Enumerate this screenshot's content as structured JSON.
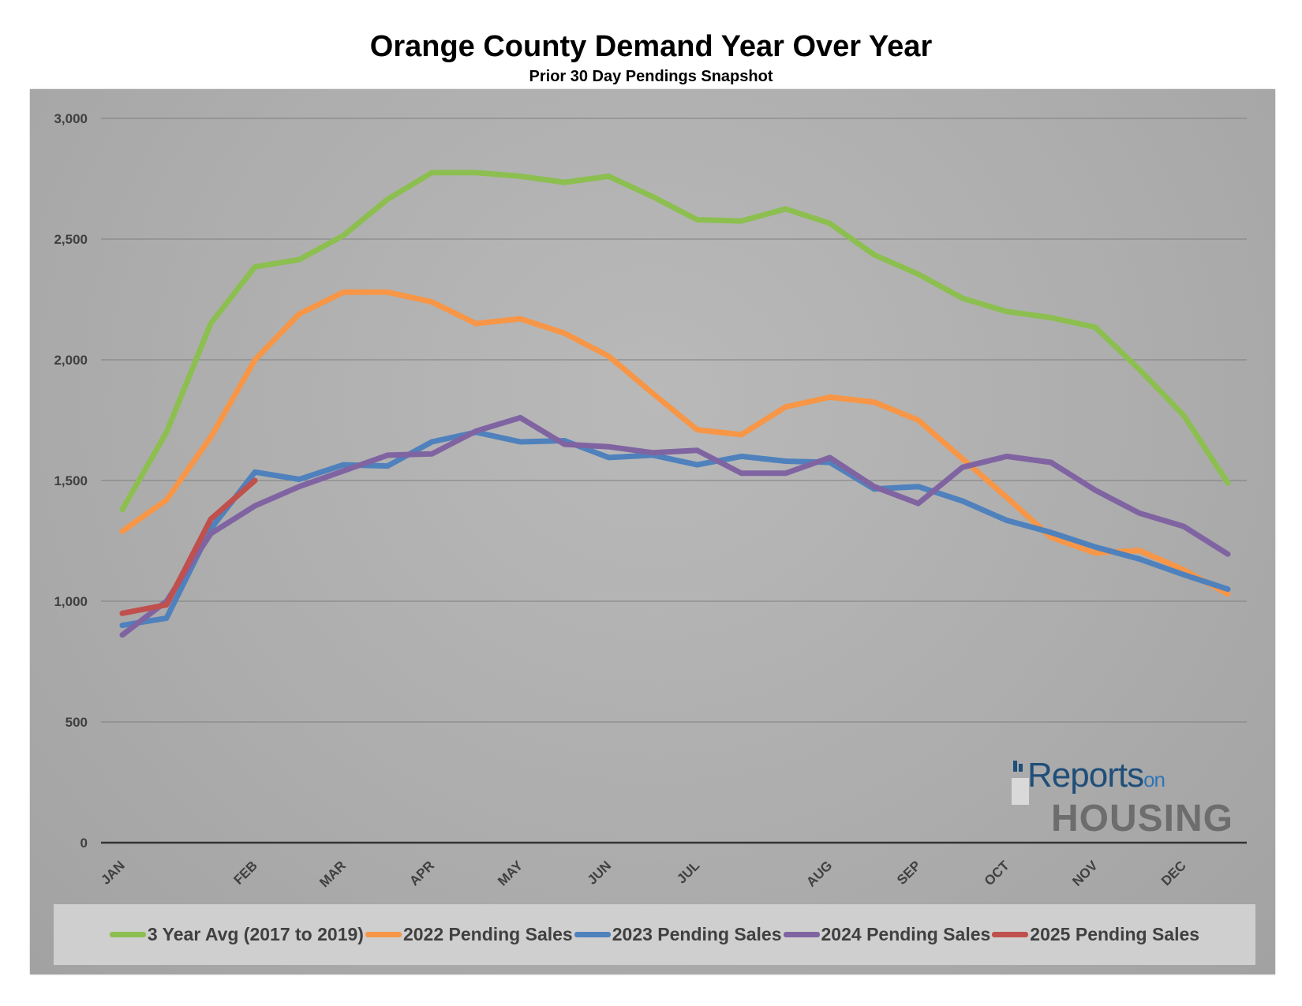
{
  "title": "Orange County Demand Year Over Year",
  "subtitle": "Prior 30 Day Pendings Snapshot",
  "logo": {
    "reports": "Reports",
    "on": "on",
    "housing": "HOUSING"
  },
  "chart_data": {
    "type": "line",
    "title": "Orange County Demand Year Over Year",
    "subtitle": "Prior 30 Day Pendings Snapshot",
    "ylim": [
      0,
      3000
    ],
    "yticks": [
      0,
      500,
      1000,
      1500,
      2000,
      2500,
      3000
    ],
    "ytick_labels": [
      "0",
      "500",
      "1,000",
      "1,500",
      "2,000",
      "2,500",
      "3,000"
    ],
    "grid": true,
    "legend": "bottom",
    "month_labels": [
      {
        "label": "JAN",
        "index": 0
      },
      {
        "label": "FEB",
        "index": 3
      },
      {
        "label": "MAR",
        "index": 5
      },
      {
        "label": "APR",
        "index": 7
      },
      {
        "label": "MAY",
        "index": 9
      },
      {
        "label": "JUN",
        "index": 11
      },
      {
        "label": "JUL",
        "index": 13
      },
      {
        "label": "AUG",
        "index": 16
      },
      {
        "label": "SEP",
        "index": 18
      },
      {
        "label": "OCT",
        "index": 20
      },
      {
        "label": "NOV",
        "index": 22
      },
      {
        "label": "DEC",
        "index": 24
      }
    ],
    "series": [
      {
        "name": "3 Year Avg (2017 to 2019)",
        "color": "#8cbf50",
        "values": [
          1380,
          1700,
          2150,
          2385,
          2415,
          2515,
          2665,
          2775,
          2775,
          2760,
          2735,
          2760,
          2675,
          2580,
          2575,
          2625,
          2565,
          2435,
          2355,
          2255,
          2200,
          2175,
          2135,
          1960,
          1770,
          1490
        ]
      },
      {
        "name": "2022 Pending Sales",
        "color": "#f79646",
        "values": [
          1290,
          1420,
          1680,
          2000,
          2190,
          2280,
          2280,
          2240,
          2150,
          2170,
          2110,
          2015,
          1860,
          1710,
          1690,
          1805,
          1845,
          1825,
          1750,
          1590,
          1430,
          1265,
          1200,
          1210,
          1130,
          1030
        ]
      },
      {
        "name": "2023 Pending Sales",
        "color": "#4f81bd",
        "values": [
          900,
          930,
          1300,
          1535,
          1505,
          1565,
          1560,
          1660,
          1700,
          1660,
          1665,
          1595,
          1605,
          1565,
          1600,
          1580,
          1575,
          1465,
          1475,
          1415,
          1335,
          1285,
          1225,
          1175,
          1110,
          1050
        ]
      },
      {
        "name": "2024 Pending Sales",
        "color": "#8064a2",
        "values": [
          860,
          1000,
          1280,
          1395,
          1475,
          1540,
          1605,
          1610,
          1705,
          1760,
          1650,
          1640,
          1615,
          1625,
          1530,
          1530,
          1595,
          1475,
          1405,
          1555,
          1600,
          1575,
          1460,
          1365,
          1310,
          1195
        ]
      },
      {
        "name": "2025 Pending Sales",
        "color": "#c0504d",
        "values": [
          950,
          985,
          1340,
          1500
        ]
      }
    ]
  }
}
